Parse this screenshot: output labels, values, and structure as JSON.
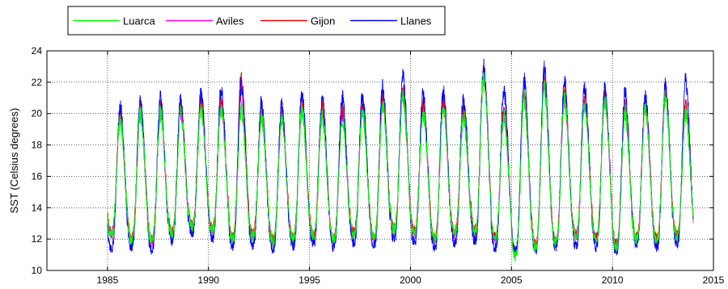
{
  "chart_data": {
    "type": "line",
    "title": "",
    "xlabel": "",
    "ylabel": "SST (Celsius degrees)",
    "xlim": [
      1982,
      2015
    ],
    "ylim": [
      10,
      24
    ],
    "xticks": [
      1985,
      1990,
      1995,
      2000,
      2005,
      2010,
      2015
    ],
    "yticks": [
      10,
      12,
      14,
      16,
      18,
      20,
      22,
      24
    ],
    "grid": true,
    "grid_style": "dotted",
    "legend_placement": "top-left, outside, horizontal",
    "x_start": 1985.0,
    "x_end": 2014.0,
    "annual_cycle_description": "seasonal SST, minimum ~February-March, maximum ~August",
    "series": [
      {
        "name": "Luarca",
        "color": "#00ff00",
        "yearly_min": [
          12.3,
          12.0,
          11.9,
          12.4,
          12.8,
          12.6,
          12.0,
          12.2,
          11.9,
          12.1,
          12.2,
          12.0,
          12.3,
          12.1,
          12.6,
          12.4,
          12.0,
          12.4,
          12.5,
          12.1,
          10.9,
          11.5,
          11.8,
          12.2,
          12.0,
          11.5,
          12.0,
          11.9,
          12.2,
          12.0
        ],
        "yearly_max": [
          19.6,
          20.0,
          20.0,
          20.0,
          20.3,
          20.3,
          20.2,
          19.8,
          19.5,
          20.2,
          19.8,
          19.7,
          20.0,
          20.5,
          21.0,
          20.0,
          20.3,
          19.8,
          22.2,
          19.8,
          21.0,
          21.6,
          20.8,
          20.5,
          20.8,
          20.0,
          20.3,
          21.0,
          20.0
        ]
      },
      {
        "name": "Aviles",
        "color": "#ff00ff",
        "yearly_min": [
          12.2,
          11.9,
          11.8,
          12.3,
          12.7,
          12.5,
          12.0,
          12.1,
          11.8,
          12.0,
          12.1,
          11.9,
          12.2,
          12.0,
          12.5,
          12.3,
          11.9,
          12.3,
          12.4,
          12.0,
          11.1,
          11.6,
          11.8,
          12.1,
          12.0,
          11.6,
          12.0,
          11.9,
          12.1,
          12.0
        ],
        "yearly_max": [
          19.8,
          20.2,
          20.3,
          20.2,
          20.6,
          20.6,
          21.5,
          20.0,
          19.8,
          20.5,
          20.1,
          20.0,
          20.3,
          20.8,
          21.3,
          20.3,
          20.6,
          20.0,
          22.4,
          20.0,
          21.3,
          21.9,
          21.0,
          20.8,
          21.0,
          20.2,
          20.6,
          21.3,
          20.3
        ]
      },
      {
        "name": "Gijon",
        "color": "#ff0000",
        "yearly_min": [
          12.4,
          12.1,
          12.0,
          12.5,
          12.9,
          12.7,
          12.1,
          12.3,
          12.0,
          12.2,
          12.3,
          12.1,
          12.4,
          12.2,
          12.7,
          12.5,
          12.1,
          12.5,
          12.6,
          12.2,
          11.2,
          11.7,
          11.9,
          12.3,
          12.1,
          11.7,
          12.1,
          12.0,
          12.3,
          12.1
        ],
        "yearly_max": [
          20.0,
          20.5,
          20.4,
          20.4,
          20.8,
          20.8,
          22.3,
          20.2,
          20.0,
          20.7,
          20.3,
          20.1,
          20.5,
          21.0,
          21.5,
          20.5,
          20.8,
          20.2,
          22.6,
          20.2,
          21.5,
          22.1,
          21.2,
          21.0,
          21.2,
          20.4,
          20.8,
          21.5,
          20.5
        ]
      },
      {
        "name": "Llanes",
        "color": "#0000ff",
        "yearly_min": [
          11.4,
          11.5,
          11.3,
          11.9,
          12.4,
          12.1,
          11.5,
          11.6,
          11.4,
          11.6,
          11.7,
          11.5,
          11.8,
          11.6,
          12.0,
          11.8,
          11.4,
          11.8,
          11.9,
          11.4,
          11.2,
          11.3,
          11.5,
          11.6,
          11.5,
          11.2,
          11.6,
          11.4,
          11.7,
          11.5
        ],
        "yearly_max": [
          20.4,
          20.9,
          21.0,
          20.8,
          21.2,
          21.6,
          21.8,
          20.6,
          20.4,
          21.3,
          21.0,
          21.0,
          21.0,
          21.6,
          22.4,
          21.2,
          21.5,
          20.9,
          23.0,
          21.5,
          22.1,
          22.8,
          22.0,
          21.6,
          21.6,
          21.3,
          21.0,
          21.7,
          22.0
        ]
      }
    ]
  }
}
